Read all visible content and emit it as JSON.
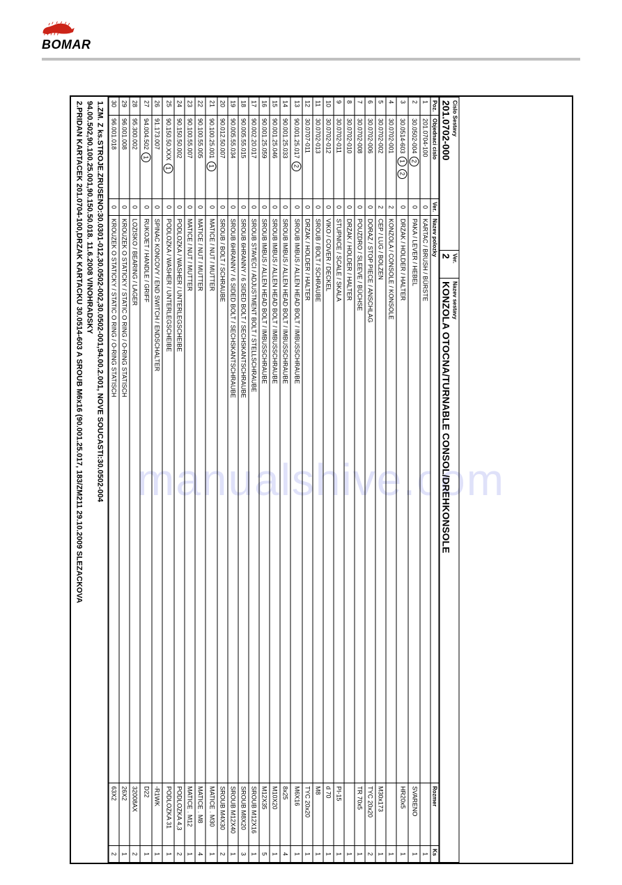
{
  "header": {
    "logo_text": "BOMAR"
  },
  "title_block": {
    "cislo_sestavy_label": "Cislo Sestavy",
    "cislo_sestavy_value": "201.0702-000",
    "ver_label": "Ver.",
    "ver_value": "2",
    "nazev_sestavy_label": "Nazev sestavy",
    "nazev_sestavy_value": "KONZOLA OTOCNA/TURNABLE CONSOL/DREHKONSOLE"
  },
  "columns": {
    "poz": "Poz.",
    "obj": "Objednaci cislo",
    "ver": "Ver.",
    "name": "Nazev polozky",
    "roz": "Rozmer",
    "ks": "Ks"
  },
  "rows": [
    {
      "poz": "1",
      "obj": "201.0704-100",
      "mark": "",
      "ver": "0",
      "name": "KARTAC / BRUSH / BÜRSTE",
      "roz": "",
      "ks": "1"
    },
    {
      "poz": "2",
      "obj": "30.0502-004",
      "mark": "2",
      "ver": "0",
      "name": "PAKA / LEVER / HEBEL",
      "roz": "SVARENO",
      "ks": "1"
    },
    {
      "poz": "3",
      "obj": "30.0514-603",
      "mark": "1 2",
      "ver": "0",
      "name": "DRZAK / HOLDER / HALTER",
      "roz": "HR20x5",
      "ks": "1"
    },
    {
      "poz": "4",
      "obj": "30.0702-001",
      "mark": "",
      "ver": "2",
      "name": "KONZOLA / CONSOLE / KONSOLE",
      "roz": "",
      "ks": "1"
    },
    {
      "poz": "5",
      "obj": "30.0702-002",
      "mark": "",
      "ver": "2",
      "name": "CEP / LUG / BOLZEN",
      "roz": "M30x173",
      "ks": "1"
    },
    {
      "poz": "6",
      "obj": "30.0702-006",
      "mark": "",
      "ver": "0",
      "name": "DORAZ / STOP PIECE / ANSCHLAG",
      "roz": "TYC 20x20",
      "ks": "2"
    },
    {
      "poz": "7",
      "obj": "30.0702-008",
      "mark": "",
      "ver": "0",
      "name": "POUZDRO / SLEEVE / BÜCHSE",
      "roz": "TR 70x5",
      "ks": "1"
    },
    {
      "poz": "8",
      "obj": "30.0702-010",
      "mark": "",
      "ver": "0",
      "name": "DRZAK / HOLDER / HALTER",
      "roz": "",
      "ks": "1"
    },
    {
      "poz": "9",
      "obj": "30.0702-011",
      "mark": "",
      "ver": "0",
      "name": "STUPNICE / SCALE / SKALA",
      "roz": "PI-15",
      "ks": "1"
    },
    {
      "poz": "10",
      "obj": "30.0702-012",
      "mark": "",
      "ver": "0",
      "name": "VIKO / COVER / DECKEL",
      "roz": "d 70",
      "ks": "1"
    },
    {
      "poz": "11",
      "obj": "30.0702-013",
      "mark": "",
      "ver": "0",
      "name": "SROUB / BOLT / SCHRAUBE",
      "roz": "M8",
      "ks": "1"
    },
    {
      "poz": "12",
      "obj": "30.0707-011",
      "mark": "",
      "ver": "0",
      "name": "DRZAK / HOLDER / HALTER",
      "roz": "TYC 20x20",
      "ks": "1"
    },
    {
      "poz": "13",
      "obj": "90.001.25.017",
      "mark": "2",
      "ver": "0",
      "name": "SROUB IMBUS / ALLEN HEAD BOLT / IMBUSSCHRAUBE",
      "roz": "M6X16",
      "ks": "1"
    },
    {
      "poz": "14",
      "obj": "90.001.25.033",
      "mark": "",
      "ver": "0",
      "name": "SROUB IMBUS / ALLEN HEAD BOLT / IMBUSSCHRAUBE",
      "roz": "8x25",
      "ks": "4"
    },
    {
      "poz": "15",
      "obj": "90.001.25.046",
      "mark": "",
      "ver": "0",
      "name": "SROUB IMBUS / ALLEN HEAD BOLT / IMBUSSCHRAUBE",
      "roz": "M10X20",
      "ks": "1"
    },
    {
      "poz": "16",
      "obj": "90.001.25.059",
      "mark": "",
      "ver": "0",
      "name": "SROUB IMBUS / ALLEN HEAD BOLT / IMBUSSCHRAUBE",
      "roz": "M12X35",
      "ks": "5"
    },
    {
      "poz": "17",
      "obj": "90.002.20.017",
      "mark": "",
      "ver": "0",
      "name": "SROUB STAVECI / ADJUSTMENT BOLT / STELLSCHRAUBE",
      "roz": "SROUB M12X16",
      "ks": "1"
    },
    {
      "poz": "18",
      "obj": "90.005.55.015",
      "mark": "",
      "ver": "0",
      "name": "SROUB 6HRANNY / 6 SIDED BOLT / SECHSKANTSCHRAUBE",
      "roz": "SROUB M8X20",
      "ks": "3"
    },
    {
      "poz": "19",
      "obj": "90.005.55.034",
      "mark": "",
      "ver": "0",
      "name": "SROUB 6HRANNY / 6 SIDED BOLT / SECHSKANTSCHRAUBE",
      "roz": "SROUB M12X40",
      "ks": "1"
    },
    {
      "poz": "20",
      "obj": "90.012.50.007",
      "mark": "",
      "ver": "0",
      "name": "SROUB / BOLT / SCHRAUBE",
      "roz": "SROUB M4X30",
      "ks": "2"
    },
    {
      "poz": "21",
      "obj": "90.100.25.001",
      "mark": "1",
      "ver": "0",
      "name": "MATICE / NUT / MUTTER",
      "roz": "MATICE . M30",
      "ks": "1"
    },
    {
      "poz": "22",
      "obj": "90.100.55.005",
      "mark": "",
      "ver": "0",
      "name": "MATICE / NUT / MUTTER",
      "roz": "MATICE . M8",
      "ks": "4"
    },
    {
      "poz": "23",
      "obj": "90.100.55.007",
      "mark": "",
      "ver": "0",
      "name": "MATICE / NUT / MUTTER",
      "roz": "MATICE . M12",
      "ks": "1"
    },
    {
      "poz": "24",
      "obj": "90.150.50.002",
      "mark": "",
      "ver": "0",
      "name": "PODLOZKA / WASHER / UNTERLEGSCHEIBE",
      "roz": "PODLOZKA 4,3",
      "ks": "2"
    },
    {
      "poz": "25",
      "obj": "90.150.50.XXX",
      "mark": "1",
      "ver": "0",
      "name": "PODLOZKA / WASHER / UNTERLEGSCHEIBE",
      "roz": "PODLOZKA 31",
      "ks": "1"
    },
    {
      "poz": "26",
      "obj": "91.173.007",
      "mark": "",
      "ver": "0",
      "name": "SPINAC KONCOVY / END SWITCH / ENDSCHALTER",
      "roz": "-R1WK",
      "ks": "1"
    },
    {
      "poz": "27",
      "obj": "94.004.502",
      "mark": "1",
      "ver": "0",
      "name": "RUKOJET / HANDLE   / GRIFF",
      "roz": "D22",
      "ks": "1"
    },
    {
      "poz": "28",
      "obj": "95.300.002",
      "mark": "",
      "ver": "0",
      "name": "LOZISKO / BEARING / LAGER",
      "roz": "32008AX",
      "ks": "2"
    },
    {
      "poz": "29",
      "obj": "96.001.008",
      "mark": "",
      "ver": "0",
      "name": "KROUZEK O STATICKY / STATIC O RING / O-RING STATISCH",
      "roz": "26X2",
      "ks": "1"
    },
    {
      "poz": "30",
      "obj": "96.001.018",
      "mark": "",
      "ver": "0",
      "name": "KROUZEK O STATICKY / STATIC O RING / O-RING STATISCH",
      "roz": "63X2",
      "ks": "2"
    }
  ],
  "notes": {
    "line1": "1.ZM. Z ks.STROJE.ZRUSENO:30.0301-012,30.0502-002,30.0502-001,94.00.2.001, NOVE SOUCASTI:30.0502-004",
    "line2": "94.00.502,90.100.25.001,90.150.50.018.   11.6.2008 VINOHRADSKY",
    "line3": "2.PRIDAN KARTACEK 201.0704-100,DRZAK KARTACKU 30.0514-603 A SROUB M6x16 (90.001.25.017, 183/ZM211 29.10.2009 SLEZACKOVA"
  },
  "watermark": "manualshive.com",
  "colors": {
    "border": "#000000",
    "rule": "#c0c0c0",
    "logo_red": "#cc2418",
    "watermark": "rgba(80,90,220,0.18)"
  }
}
